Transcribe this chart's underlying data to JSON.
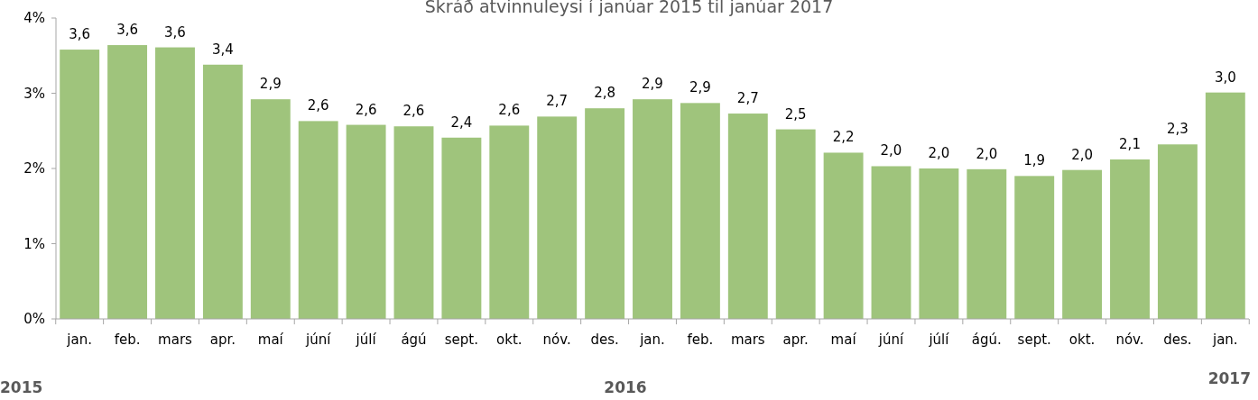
{
  "chart_data": {
    "type": "bar",
    "title": "Skráð atvinnuleysi í janúar 2015 til janúar 2017",
    "categories": [
      "jan.",
      "feb.",
      "mars",
      "apr.",
      "maí",
      "júní",
      "júlí",
      "ágú",
      "sept.",
      "okt.",
      "nóv.",
      "des.",
      "jan.",
      "feb.",
      "mars",
      "apr.",
      "maí",
      "júní",
      "júlí",
      "ágú.",
      "sept.",
      "okt.",
      "nóv.",
      "des.",
      "jan."
    ],
    "values": [
      3.58,
      3.64,
      3.61,
      3.38,
      2.92,
      2.63,
      2.58,
      2.56,
      2.41,
      2.57,
      2.69,
      2.8,
      2.92,
      2.87,
      2.73,
      2.52,
      2.21,
      2.03,
      2.0,
      1.99,
      1.9,
      1.98,
      2.12,
      2.32,
      3.01
    ],
    "value_labels": [
      "3,6",
      "3,6",
      "3,6",
      "3,4",
      "2,9",
      "2,6",
      "2,6",
      "2,6",
      "2,4",
      "2,6",
      "2,7",
      "2,8",
      "2,9",
      "2,9",
      "2,7",
      "2,5",
      "2,2",
      "2,0",
      "2,0",
      "2,0",
      "1,9",
      "2,0",
      "2,1",
      "2,3",
      "3,0"
    ],
    "color": "#9fc47c",
    "ylim": [
      0,
      4
    ],
    "yticks": [
      {
        "value": 0,
        "label": "0%"
      },
      {
        "value": 1,
        "label": "1%"
      },
      {
        "value": 2,
        "label": "2%"
      },
      {
        "value": 3,
        "label": "3%"
      },
      {
        "value": 4,
        "label": "4%"
      }
    ],
    "annotations": [
      "2015",
      "2016",
      "2017"
    ]
  }
}
